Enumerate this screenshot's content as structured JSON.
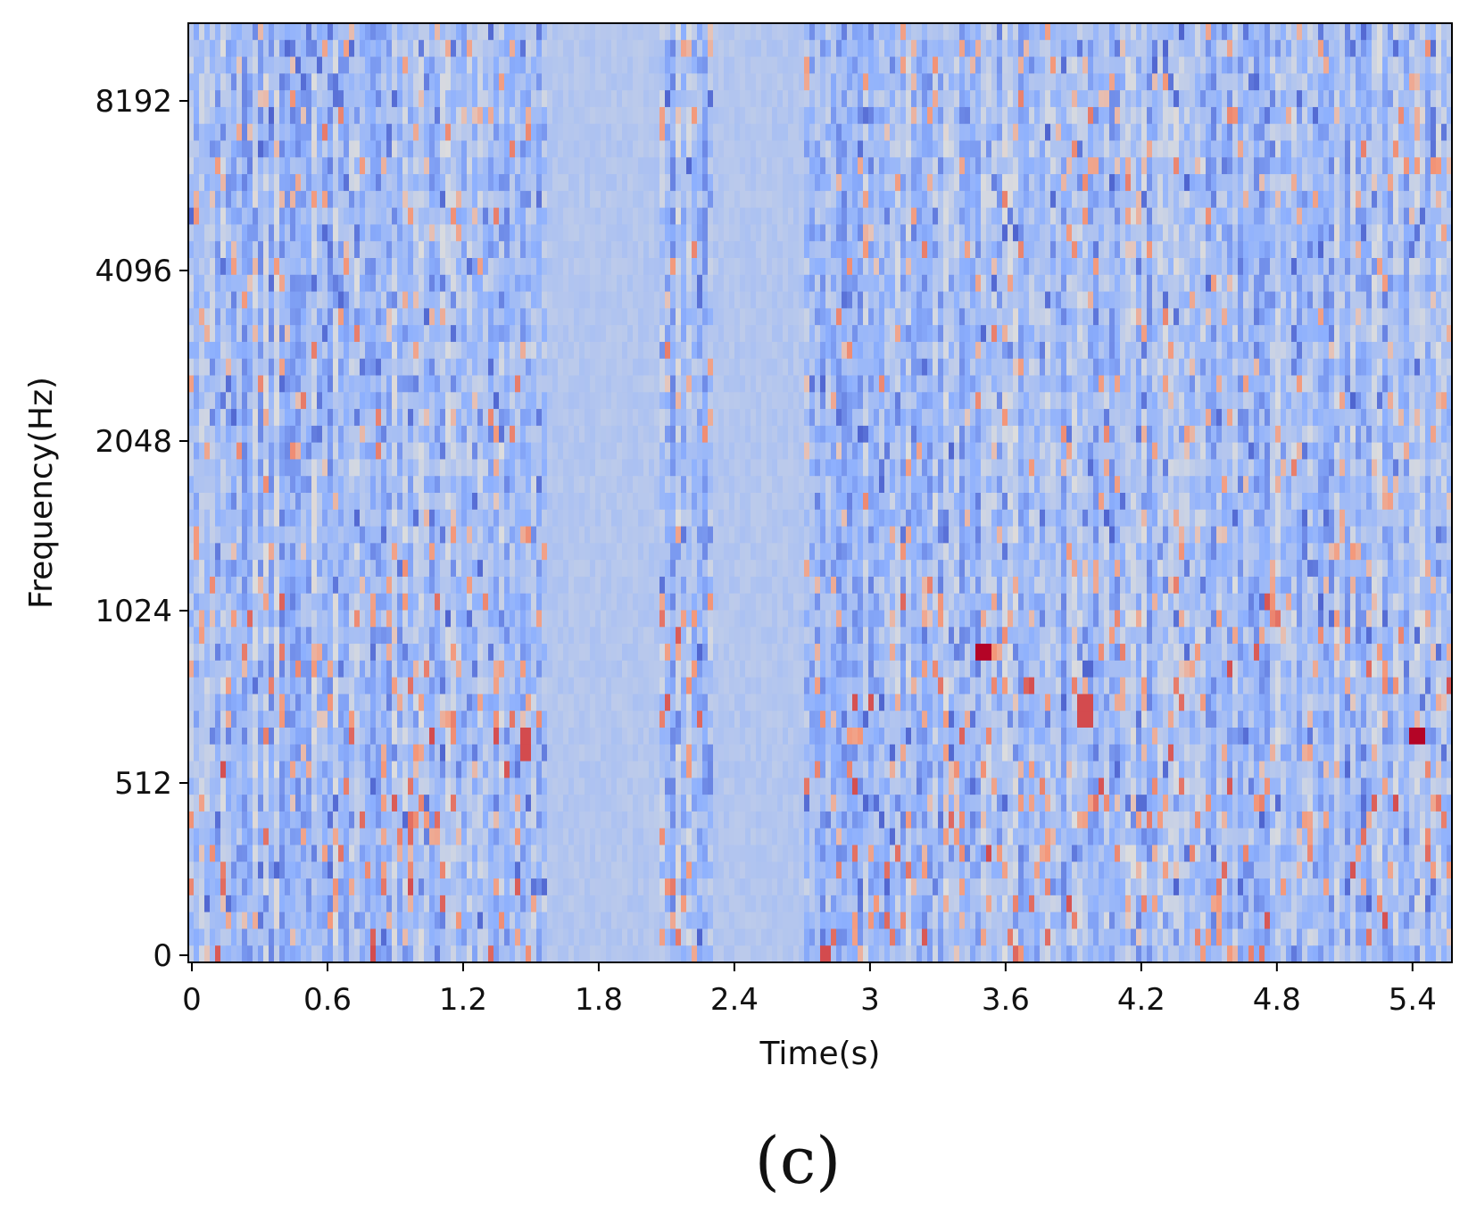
{
  "chart_data": {
    "type": "heatmap",
    "title": "",
    "xlabel": "Time(s)",
    "ylabel": "Frequency(Hz)",
    "x_ticks": [
      0,
      0.6,
      1.2,
      1.8,
      2.4,
      3,
      3.6,
      4.2,
      4.8,
      5.4
    ],
    "x_tick_labels": [
      "0",
      "0.6",
      "1.2",
      "1.8",
      "2.4",
      "3",
      "3.6",
      "4.2",
      "4.8",
      "5.4"
    ],
    "y_ticks": [
      0,
      512,
      1024,
      2048,
      4096,
      8192
    ],
    "y_tick_labels": [
      "0",
      "512",
      "1024",
      "2048",
      "4096",
      "8192"
    ],
    "y_scale": "log2-style (octave spacing)",
    "xlim": [
      0,
      5.55
    ],
    "colormap": "coolwarm",
    "colormap_colors": [
      "#3b4cc0",
      "#8db0fe",
      "#dddddd",
      "#f4987a",
      "#b40426"
    ],
    "background_color": "#c8d4f2",
    "grid": false,
    "legend": "none",
    "notes_hot_spots": [
      {
        "time": 3.5,
        "frequency": 870,
        "level": "max"
      },
      {
        "time": 5.42,
        "frequency": 620,
        "level": "max"
      },
      {
        "time": 3.95,
        "frequency": 700,
        "level": "high"
      },
      {
        "time": 1.48,
        "frequency": 590,
        "level": "high"
      },
      {
        "time": 2.8,
        "frequency": 0,
        "level": "high"
      }
    ]
  },
  "panel_label": "(c)"
}
